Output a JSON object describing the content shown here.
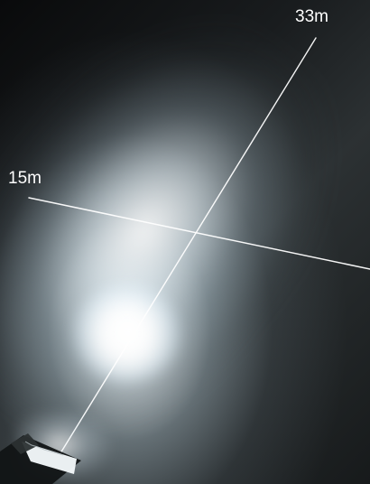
{
  "labels": {
    "far_distance": "33m",
    "near_distance": "15m"
  },
  "colors": {
    "background_dark": "#1c1f21",
    "beam_white": "#ffffff",
    "guide_line": "#ffffff",
    "fixture_body": "#eef3f5",
    "fixture_shadow": "#1a1d1f"
  },
  "icons": {
    "light_fixture": "light-fixture-icon"
  }
}
